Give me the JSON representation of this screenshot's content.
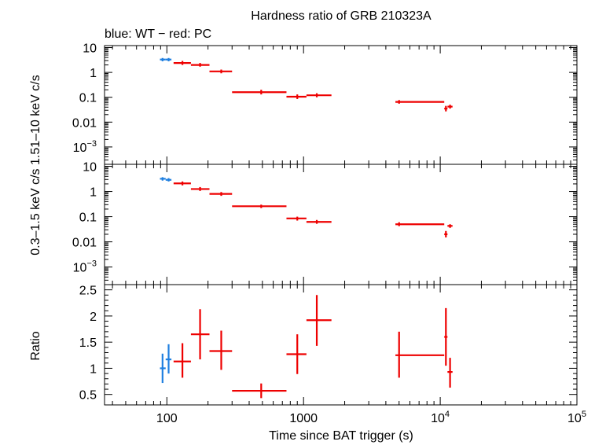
{
  "chart_data": {
    "type": "scatter",
    "title": "Hardness ratio of GRB 210323A",
    "subtitle": "blue: WT − red: PC",
    "xlabel": "Time since BAT trigger (s)",
    "xscale": "log",
    "xlim": [
      35,
      100000
    ],
    "x_ticks": [
      {
        "value": 100,
        "label": "100"
      },
      {
        "value": 1000,
        "label": "1000"
      },
      {
        "value": 10000,
        "label": "10",
        "sup": "4"
      },
      {
        "value": 100000,
        "label": "10",
        "sup": "5"
      }
    ],
    "colors": {
      "WT": "#1f7fe0",
      "PC": "#ee0000"
    },
    "shared_ylabel": "0.3–1.5 keV c/s  1.51–10 keV c/s",
    "panels": [
      {
        "id": "hard",
        "ylabel": "1.51–10 keV c/s",
        "yscale": "log",
        "ylim": [
          0.0002,
          12
        ],
        "y_ticks": [
          {
            "value": 10,
            "label": "10"
          },
          {
            "value": 1,
            "label": "1"
          },
          {
            "value": 0.1,
            "label": "0.1"
          },
          {
            "value": 0.01,
            "label": "0.01"
          },
          {
            "value": 0.001,
            "label": "10",
            "sup": "−3"
          }
        ],
        "series": [
          {
            "name": "WT",
            "points": [
              {
                "x": 93,
                "xlo": 89,
                "xhi": 98,
                "y": 3.3,
                "ylo": 2.8,
                "yhi": 3.8
              },
              {
                "x": 103,
                "xlo": 98,
                "xhi": 108,
                "y": 3.3,
                "ylo": 2.8,
                "yhi": 3.8
              }
            ]
          },
          {
            "name": "PC",
            "points": [
              {
                "x": 130,
                "xlo": 112,
                "xhi": 150,
                "y": 2.4,
                "ylo": 2.0,
                "yhi": 2.9
              },
              {
                "x": 175,
                "xlo": 150,
                "xhi": 205,
                "y": 2.0,
                "ylo": 1.7,
                "yhi": 2.4
              },
              {
                "x": 250,
                "xlo": 205,
                "xhi": 300,
                "y": 1.1,
                "ylo": 0.92,
                "yhi": 1.3
              },
              {
                "x": 490,
                "xlo": 300,
                "xhi": 750,
                "y": 0.16,
                "ylo": 0.13,
                "yhi": 0.2
              },
              {
                "x": 900,
                "xlo": 750,
                "xhi": 1050,
                "y": 0.105,
                "ylo": 0.085,
                "yhi": 0.13
              },
              {
                "x": 1250,
                "xlo": 1050,
                "xhi": 1600,
                "y": 0.12,
                "ylo": 0.1,
                "yhi": 0.145
              },
              {
                "x": 5000,
                "xlo": 4700,
                "xhi": 10700,
                "y": 0.065,
                "ylo": 0.055,
                "yhi": 0.077
              },
              {
                "x": 11000,
                "xlo": 10700,
                "xhi": 11300,
                "y": 0.035,
                "ylo": 0.027,
                "yhi": 0.045
              },
              {
                "x": 11800,
                "xlo": 11300,
                "xhi": 12300,
                "y": 0.042,
                "ylo": 0.035,
                "yhi": 0.05
              }
            ]
          }
        ]
      },
      {
        "id": "soft",
        "ylabel": "0.3–1.5 keV c/s",
        "yscale": "log",
        "ylim": [
          0.0002,
          12
        ],
        "y_ticks": [
          {
            "value": 10,
            "label": "10"
          },
          {
            "value": 1,
            "label": "1"
          },
          {
            "value": 0.1,
            "label": "0.1"
          },
          {
            "value": 0.01,
            "label": "0.01"
          },
          {
            "value": 0.001,
            "label": "10",
            "sup": "−3"
          }
        ],
        "series": [
          {
            "name": "WT",
            "points": [
              {
                "x": 93,
                "xlo": 89,
                "xhi": 98,
                "y": 3.2,
                "ylo": 2.7,
                "yhi": 3.7
              },
              {
                "x": 103,
                "xlo": 98,
                "xhi": 108,
                "y": 2.9,
                "ylo": 2.5,
                "yhi": 3.4
              }
            ]
          },
          {
            "name": "PC",
            "points": [
              {
                "x": 130,
                "xlo": 112,
                "xhi": 150,
                "y": 2.1,
                "ylo": 1.75,
                "yhi": 2.5
              },
              {
                "x": 175,
                "xlo": 150,
                "xhi": 205,
                "y": 1.25,
                "ylo": 1.05,
                "yhi": 1.5
              },
              {
                "x": 250,
                "xlo": 205,
                "xhi": 300,
                "y": 0.8,
                "ylo": 0.67,
                "yhi": 0.95
              },
              {
                "x": 490,
                "xlo": 300,
                "xhi": 750,
                "y": 0.26,
                "ylo": 0.22,
                "yhi": 0.3
              },
              {
                "x": 900,
                "xlo": 750,
                "xhi": 1050,
                "y": 0.085,
                "ylo": 0.07,
                "yhi": 0.1
              },
              {
                "x": 1250,
                "xlo": 1050,
                "xhi": 1600,
                "y": 0.062,
                "ylo": 0.052,
                "yhi": 0.074
              },
              {
                "x": 5000,
                "xlo": 4700,
                "xhi": 10700,
                "y": 0.05,
                "ylo": 0.042,
                "yhi": 0.06
              },
              {
                "x": 11000,
                "xlo": 10700,
                "xhi": 11300,
                "y": 0.02,
                "ylo": 0.015,
                "yhi": 0.027
              },
              {
                "x": 11800,
                "xlo": 11300,
                "xhi": 12300,
                "y": 0.043,
                "ylo": 0.036,
                "yhi": 0.05
              }
            ]
          }
        ]
      },
      {
        "id": "ratio",
        "ylabel": "Ratio",
        "yscale": "linear",
        "ylim": [
          0.3,
          2.6
        ],
        "y_ticks": [
          {
            "value": 2.5,
            "label": "2.5"
          },
          {
            "value": 2,
            "label": "2"
          },
          {
            "value": 1.5,
            "label": "1.5"
          },
          {
            "value": 1,
            "label": "1"
          },
          {
            "value": 0.5,
            "label": "0.5"
          }
        ],
        "series": [
          {
            "name": "WT",
            "points": [
              {
                "x": 93,
                "xlo": 89,
                "xhi": 98,
                "y": 1.0,
                "ylo": 0.72,
                "yhi": 1.28
              },
              {
                "x": 103,
                "xlo": 98,
                "xhi": 108,
                "y": 1.17,
                "ylo": 0.9,
                "yhi": 1.46
              }
            ]
          },
          {
            "name": "PC",
            "points": [
              {
                "x": 130,
                "xlo": 112,
                "xhi": 150,
                "y": 1.13,
                "ylo": 0.82,
                "yhi": 1.48
              },
              {
                "x": 175,
                "xlo": 150,
                "xhi": 205,
                "y": 1.65,
                "ylo": 1.17,
                "yhi": 2.13
              },
              {
                "x": 250,
                "xlo": 205,
                "xhi": 300,
                "y": 1.33,
                "ylo": 0.97,
                "yhi": 1.72
              },
              {
                "x": 490,
                "xlo": 300,
                "xhi": 750,
                "y": 0.57,
                "ylo": 0.43,
                "yhi": 0.71
              },
              {
                "x": 900,
                "xlo": 750,
                "xhi": 1050,
                "y": 1.27,
                "ylo": 0.89,
                "yhi": 1.65
              },
              {
                "x": 1250,
                "xlo": 1050,
                "xhi": 1600,
                "y": 1.92,
                "ylo": 1.43,
                "yhi": 2.4
              },
              {
                "x": 5000,
                "xlo": 4700,
                "xhi": 10700,
                "y": 1.25,
                "ylo": 0.82,
                "yhi": 1.7
              },
              {
                "x": 11000,
                "xlo": 10700,
                "xhi": 11300,
                "y": 1.6,
                "ylo": 1.05,
                "yhi": 2.15
              },
              {
                "x": 11800,
                "xlo": 11300,
                "xhi": 12300,
                "y": 0.93,
                "ylo": 0.63,
                "yhi": 1.2
              }
            ]
          }
        ]
      }
    ]
  }
}
